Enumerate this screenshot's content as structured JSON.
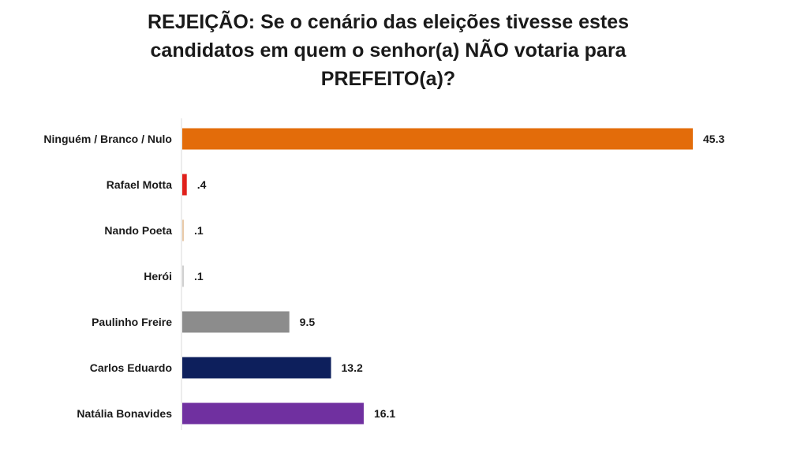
{
  "chart_data": {
    "type": "bar",
    "orientation": "horizontal",
    "title_lines": [
      "REJEIÇÃO: Se o cenário das eleições tivesse estes",
      "candidatos em quem o senhor(a) NÃO votaria para",
      "PREFEITO(a)?"
    ],
    "categories": [
      "Ninguém / Branco / Nulo",
      "Rafael Motta",
      "Nando Poeta",
      "Herói",
      "Paulinho Freire",
      "Carlos Eduardo",
      "Natália Bonavides"
    ],
    "values": [
      45.3,
      0.4,
      0.1,
      0.1,
      9.5,
      13.2,
      16.1
    ],
    "value_labels": [
      "45.3",
      ".4",
      ".1",
      ".1",
      "9.5",
      "13.2",
      "16.1"
    ],
    "colors": [
      "#e36c0a",
      "#e0201b",
      "#e8c9a8",
      "#d0d0d0",
      "#8c8c8c",
      "#0d1f5c",
      "#7030a0"
    ],
    "xlim": [
      0,
      45.3
    ],
    "xlabel": "",
    "ylabel": "",
    "grid": false,
    "legend": "none"
  }
}
